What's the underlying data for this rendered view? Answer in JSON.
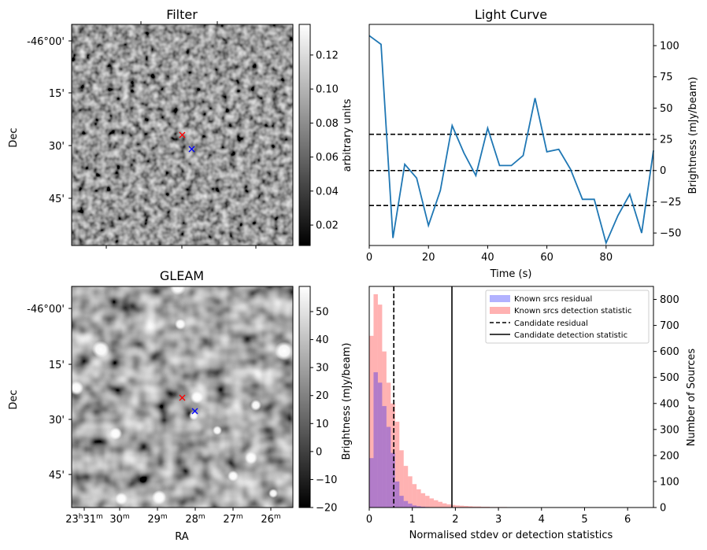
{
  "chart_data": [
    {
      "type": "heatmap",
      "title": "Filter",
      "ylabel": "Dec",
      "y_ticks": [
        "-46°00'",
        "15'",
        "30'",
        "45'"
      ],
      "colorbar": {
        "label": "arbitrary units",
        "range": [
          0.008,
          0.138
        ],
        "ticks": [
          "0.02",
          "0.04",
          "0.06",
          "0.08",
          "0.10",
          "0.12"
        ],
        "tick_values": [
          0.02,
          0.04,
          0.06,
          0.08,
          0.1,
          0.12
        ],
        "colormap": "gray"
      },
      "markers": [
        {
          "symbol": "x",
          "color": "#ff0000"
        },
        {
          "symbol": "x",
          "color": "#0000ff"
        }
      ]
    },
    {
      "type": "line",
      "title": "Light Curve",
      "xlabel": "Time (s)",
      "ylabel": "Brightness (mJy/beam)",
      "xlim": [
        0,
        96
      ],
      "ylim": [
        -60,
        117
      ],
      "x_ticks": [
        0,
        20,
        40,
        60,
        80
      ],
      "y_ticks": [
        -50,
        -25,
        0,
        25,
        50,
        75,
        100
      ],
      "series": [
        {
          "color": "#1f77b4",
          "x": [
            0,
            4,
            8,
            12,
            16,
            20,
            24,
            28,
            32,
            36,
            40,
            44,
            48,
            52,
            56,
            60,
            64,
            68,
            72,
            76,
            80,
            84,
            88,
            92,
            96
          ],
          "values": [
            108,
            101,
            -54,
            5,
            -6,
            -44,
            -16,
            36,
            14,
            -4,
            34,
            4,
            4,
            12,
            58,
            15,
            17,
            1,
            -23,
            -23,
            -58,
            -36,
            -19,
            -50,
            16
          ]
        }
      ],
      "hlines": [
        {
          "y": 29,
          "style": "dashed",
          "color": "#000000"
        },
        {
          "y": 0,
          "style": "dashed",
          "color": "#000000"
        },
        {
          "y": -28,
          "style": "dashed",
          "color": "#000000"
        }
      ]
    },
    {
      "type": "heatmap",
      "title": "GLEAM",
      "xlabel": "RA",
      "ylabel": "Dec",
      "x_ticks": [
        {
          "h": "23",
          "m": "31"
        },
        {
          "h": "",
          "m": "30"
        },
        {
          "h": "",
          "m": "29"
        },
        {
          "h": "",
          "m": "28"
        },
        {
          "h": "",
          "m": "27"
        },
        {
          "h": "",
          "m": "26"
        }
      ],
      "y_ticks": [
        "-46°00'",
        "15'",
        "30'",
        "45'"
      ],
      "colorbar": {
        "label": "Brightness (mJy/beam)",
        "range": [
          -20,
          59
        ],
        "ticks": [
          "50",
          "40",
          "30",
          "20",
          "10",
          "0",
          "−10",
          "−20"
        ],
        "tick_values": [
          50,
          40,
          30,
          20,
          10,
          0,
          -10,
          -20
        ],
        "colormap": "gray"
      },
      "markers": [
        {
          "symbol": "x",
          "color": "#ff0000"
        },
        {
          "symbol": "x",
          "color": "#0000ff"
        }
      ]
    },
    {
      "type": "bar",
      "xlabel": "Normalised stdev or detection statistics",
      "ylabel": "Number of Sources",
      "xlim": [
        0,
        6.6
      ],
      "ylim": [
        0,
        850
      ],
      "x_ticks": [
        0,
        1,
        2,
        3,
        4,
        5,
        6
      ],
      "y_ticks": [
        0,
        100,
        200,
        300,
        400,
        500,
        600,
        700,
        800
      ],
      "bin_width": 0.1,
      "legend_position": "top-right",
      "series": [
        {
          "name": "Known srcs residual",
          "color": "#0000ff",
          "alpha": 0.3,
          "bin_start": 0,
          "values": [
            190,
            520,
            480,
            390,
            310,
            210,
            100,
            45,
            25,
            15,
            8,
            5,
            3,
            2,
            1
          ]
        },
        {
          "name": "Known srcs detection statistic",
          "color": "#ff0000",
          "alpha": 0.3,
          "bin_start": 0,
          "values": [
            660,
            820,
            780,
            600,
            480,
            400,
            330,
            220,
            160,
            120,
            90,
            70,
            55,
            45,
            35,
            28,
            22,
            16,
            12,
            10,
            8,
            7,
            6,
            5,
            4,
            4,
            3,
            3,
            2,
            2,
            2,
            2,
            1,
            1,
            1,
            1,
            1,
            1,
            1,
            1,
            1,
            1,
            1,
            1,
            0,
            0,
            0,
            0,
            0,
            0,
            0,
            0,
            0,
            0,
            0,
            0,
            0,
            0,
            0,
            0,
            0,
            0,
            0,
            0,
            0
          ]
        }
      ],
      "vlines": [
        {
          "name": "Candidate residual",
          "x": 0.57,
          "style": "dashed",
          "color": "#000000"
        },
        {
          "name": "Candidate detection statistic",
          "x": 1.92,
          "style": "solid",
          "color": "#000000"
        }
      ]
    }
  ]
}
